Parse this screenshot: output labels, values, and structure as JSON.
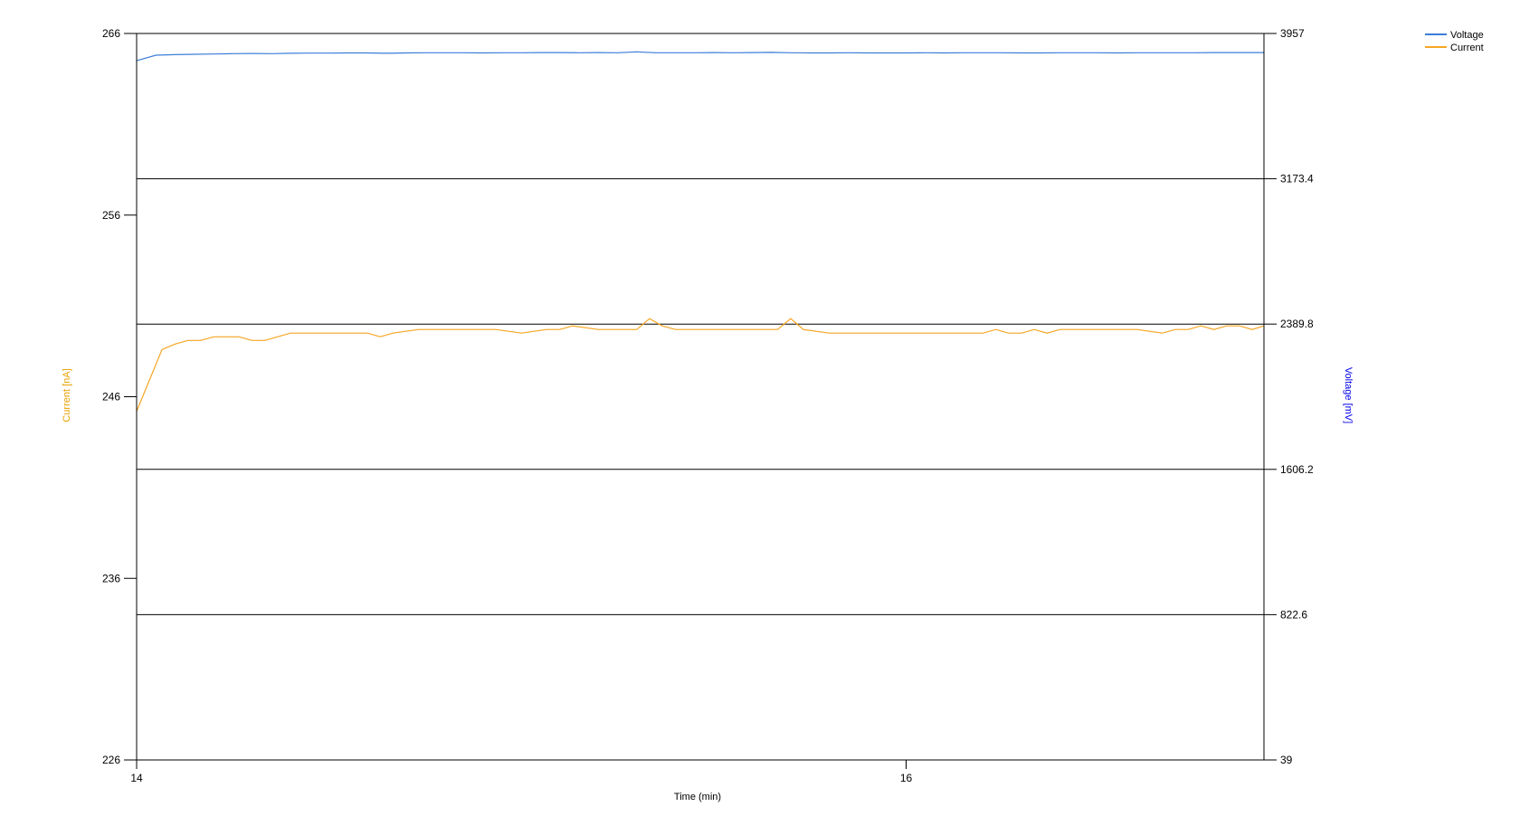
{
  "chart_data": {
    "type": "line",
    "xlabel": "Time (min)",
    "ylabel_left": "Current [nA]",
    "ylabel_right": "Voltage [mV]",
    "xlim": [
      14,
      16.93
    ],
    "x_ticks": [
      14,
      16
    ],
    "y_left_lim": [
      226,
      266
    ],
    "y_left_ticks": [
      226,
      236,
      246,
      256,
      266
    ],
    "y_right_lim": [
      39,
      3957
    ],
    "y_right_ticks": [
      39,
      822.6,
      1606.2,
      2389.8,
      3173.4,
      3957
    ],
    "y_right_tick_labels": [
      "39",
      "822.6",
      "1606.2",
      "2389.8",
      "3173.4",
      "3957"
    ],
    "grid": "horizontal lines at right-axis ticks",
    "legend_position": "top-right",
    "colors": {
      "voltage": "#3c7dd9",
      "current": "#f5a623",
      "voltage_axis_label": "#0000ee",
      "current_axis_label": "#e8a000"
    },
    "series": [
      {
        "name": "Voltage",
        "axis": "right",
        "color": "#3c7dd9",
        "x": [
          14.0,
          14.05,
          14.1,
          14.15,
          14.2,
          14.25,
          14.3,
          14.35,
          14.4,
          14.45,
          14.5,
          14.55,
          14.6,
          14.65,
          14.7,
          14.75,
          14.8,
          14.85,
          14.9,
          14.95,
          15.0,
          15.05,
          15.1,
          15.15,
          15.2,
          15.25,
          15.3,
          15.35,
          15.4,
          15.45,
          15.5,
          15.55,
          15.6,
          15.65,
          15.7,
          15.75,
          15.8,
          15.85,
          15.9,
          15.95,
          16.0,
          16.05,
          16.1,
          16.15,
          16.2,
          16.25,
          16.3,
          16.35,
          16.4,
          16.45,
          16.5,
          16.55,
          16.6,
          16.65,
          16.7,
          16.75,
          16.8,
          16.85,
          16.93
        ],
        "values": [
          3810,
          3840,
          3843,
          3845,
          3846,
          3848,
          3849,
          3848,
          3850,
          3851,
          3851,
          3852,
          3852,
          3850,
          3852,
          3853,
          3853,
          3853,
          3852,
          3853,
          3853,
          3854,
          3854,
          3853,
          3854,
          3853,
          3858,
          3853,
          3853,
          3853,
          3854,
          3853,
          3854,
          3855,
          3853,
          3852,
          3852,
          3853,
          3852,
          3852,
          3852,
          3853,
          3852,
          3853,
          3853,
          3853,
          3852,
          3852,
          3853,
          3853,
          3853,
          3852,
          3853,
          3853,
          3853,
          3853,
          3854,
          3854,
          3854
        ]
      },
      {
        "name": "Current",
        "axis": "left",
        "color": "#f5a623",
        "x": [
          14.0,
          14.066,
          14.1,
          14.133,
          14.166,
          14.2,
          14.266,
          14.3,
          14.333,
          14.4,
          14.466,
          14.533,
          14.6,
          14.633,
          14.666,
          14.733,
          14.8,
          14.866,
          14.9,
          14.933,
          15.0,
          15.066,
          15.1,
          15.133,
          15.2,
          15.266,
          15.3,
          15.333,
          15.366,
          15.4,
          15.5,
          15.6,
          15.666,
          15.7,
          15.733,
          15.8,
          15.9,
          16.0,
          16.1,
          16.2,
          16.233,
          16.266,
          16.3,
          16.333,
          16.366,
          16.4,
          16.5,
          16.6,
          16.666,
          16.7,
          16.733,
          16.766,
          16.8,
          16.833,
          16.866,
          16.9,
          16.93
        ],
        "values": [
          245.2,
          248.6,
          248.9,
          249.1,
          249.1,
          249.3,
          249.3,
          249.1,
          249.1,
          249.5,
          249.5,
          249.5,
          249.5,
          249.3,
          249.5,
          249.7,
          249.7,
          249.7,
          249.7,
          249.7,
          249.5,
          249.7,
          249.7,
          249.9,
          249.7,
          249.7,
          249.7,
          250.3,
          249.9,
          249.7,
          249.7,
          249.7,
          249.7,
          250.3,
          249.7,
          249.5,
          249.5,
          249.5,
          249.5,
          249.5,
          249.7,
          249.5,
          249.5,
          249.7,
          249.5,
          249.7,
          249.7,
          249.7,
          249.5,
          249.7,
          249.7,
          249.9,
          249.7,
          249.9,
          249.9,
          249.7,
          249.9
        ]
      }
    ]
  }
}
